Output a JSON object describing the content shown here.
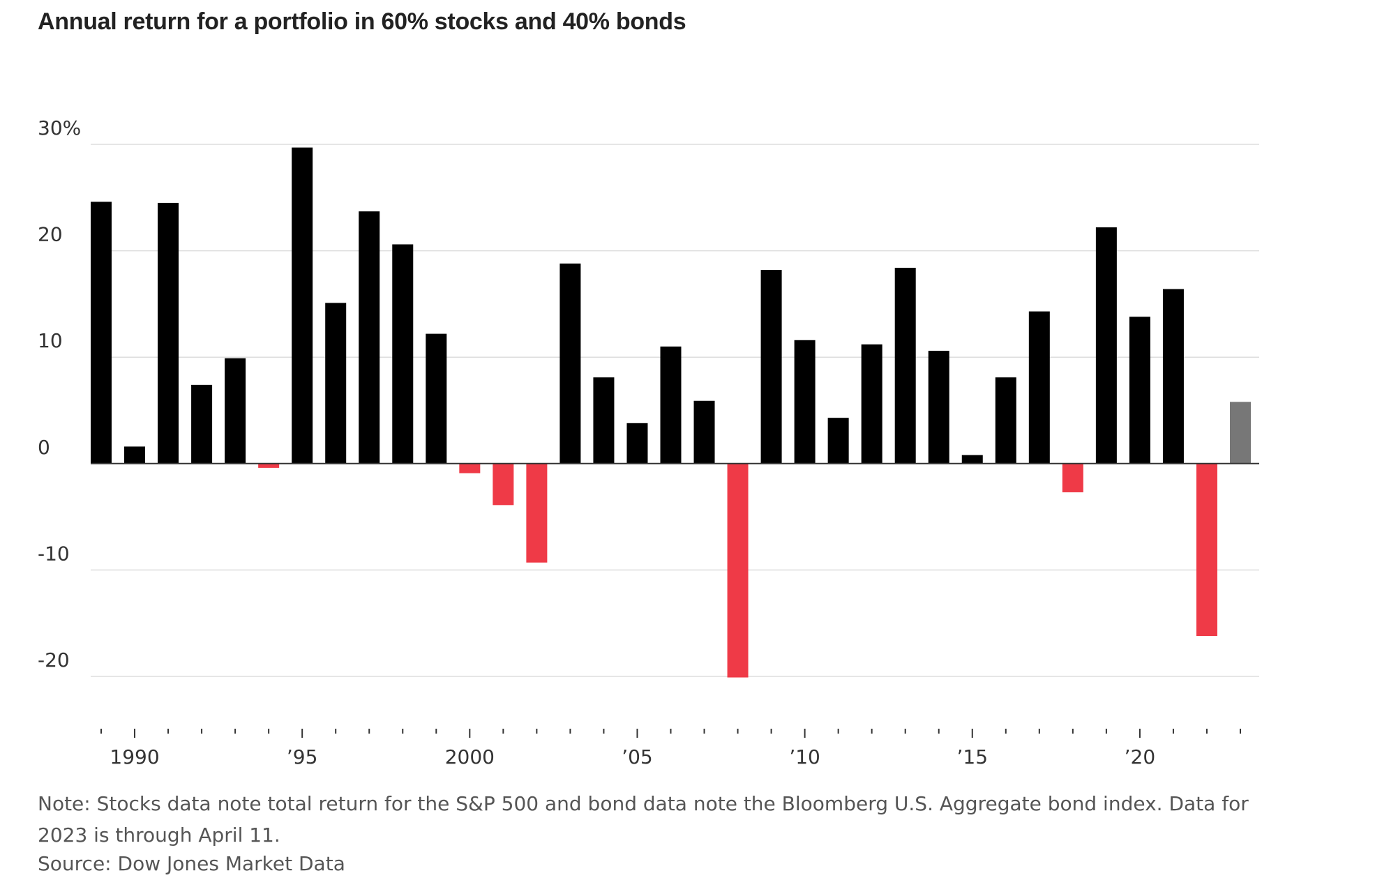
{
  "chart_data": {
    "type": "bar",
    "title": "Annual return for a portfolio in 60% stocks and 40% bonds",
    "note": "Note: Stocks data note total return for the S&P 500 and bond data note the Bloomberg U.S. Aggregate bond index. Data for 2023 is through April 11.",
    "source": "Source: Dow Jones Market Data",
    "y_ticks": [
      {
        "value": 30,
        "label": "30%"
      },
      {
        "value": 20,
        "label": "20"
      },
      {
        "value": 10,
        "label": "10"
      },
      {
        "value": 0,
        "label": "0"
      },
      {
        "value": -10,
        "label": "-10"
      },
      {
        "value": -20,
        "label": "-20"
      }
    ],
    "ylim": [
      -20,
      30
    ],
    "grid": true,
    "x_ticks": [
      {
        "year": 1990,
        "label": "1990"
      },
      {
        "year": 1995,
        "label": "’95"
      },
      {
        "year": 2000,
        "label": "2000"
      },
      {
        "year": 2005,
        "label": "’05"
      },
      {
        "year": 2010,
        "label": "’10"
      },
      {
        "year": 2015,
        "label": "’15"
      },
      {
        "year": 2020,
        "label": "’20"
      }
    ],
    "colors": {
      "positive": "#000000",
      "negative": "#ef3a47",
      "partial_year": "#777777",
      "grid": "#dddddd",
      "axis": "#333333"
    },
    "partial_year": 2023,
    "years": [
      1989,
      1990,
      1991,
      1992,
      1993,
      1994,
      1995,
      1996,
      1997,
      1998,
      1999,
      2000,
      2001,
      2002,
      2003,
      2004,
      2005,
      2006,
      2007,
      2008,
      2009,
      2010,
      2011,
      2012,
      2013,
      2014,
      2015,
      2016,
      2017,
      2018,
      2019,
      2020,
      2021,
      2022,
      2023
    ],
    "values": [
      24.6,
      1.6,
      24.5,
      7.4,
      9.9,
      -0.4,
      29.7,
      15.1,
      23.7,
      20.6,
      12.2,
      -0.9,
      -3.9,
      -9.3,
      18.8,
      8.1,
      3.8,
      11.0,
      5.9,
      -20.1,
      18.2,
      11.6,
      4.3,
      11.2,
      18.4,
      10.6,
      0.8,
      8.1,
      14.3,
      -2.7,
      22.2,
      13.8,
      16.4,
      -16.2,
      5.8
    ]
  }
}
